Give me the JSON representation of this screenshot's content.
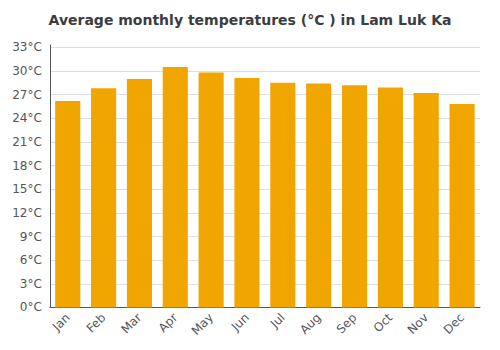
{
  "chart_data": {
    "type": "bar",
    "title": "Average monthly temperatures (°C ) in Lam Luk Ka",
    "categories": [
      "Jan",
      "Feb",
      "Mar",
      "Apr",
      "May",
      "Jun",
      "Jul",
      "Aug",
      "Sep",
      "Oct",
      "Nov",
      "Dec"
    ],
    "values": [
      26.2,
      27.8,
      29.0,
      30.5,
      29.8,
      29.1,
      28.5,
      28.4,
      28.2,
      27.9,
      27.2,
      25.8
    ],
    "color": "#F0A500",
    "ylim": [
      0,
      33.3
    ],
    "yticks": [
      {
        "value": 0,
        "label": "0°C"
      },
      {
        "value": 3,
        "label": "3°C"
      },
      {
        "value": 6,
        "label": "6°C"
      },
      {
        "value": 9,
        "label": "9°C"
      },
      {
        "value": 12,
        "label": "12°C"
      },
      {
        "value": 15,
        "label": "15°C"
      },
      {
        "value": 18,
        "label": "18°C"
      },
      {
        "value": 21,
        "label": "21°C"
      },
      {
        "value": 24,
        "label": "24°C"
      },
      {
        "value": 27,
        "label": "27°C"
      },
      {
        "value": 30,
        "label": "30°C"
      },
      {
        "value": 33,
        "label": "33°C"
      }
    ],
    "grid": true
  }
}
